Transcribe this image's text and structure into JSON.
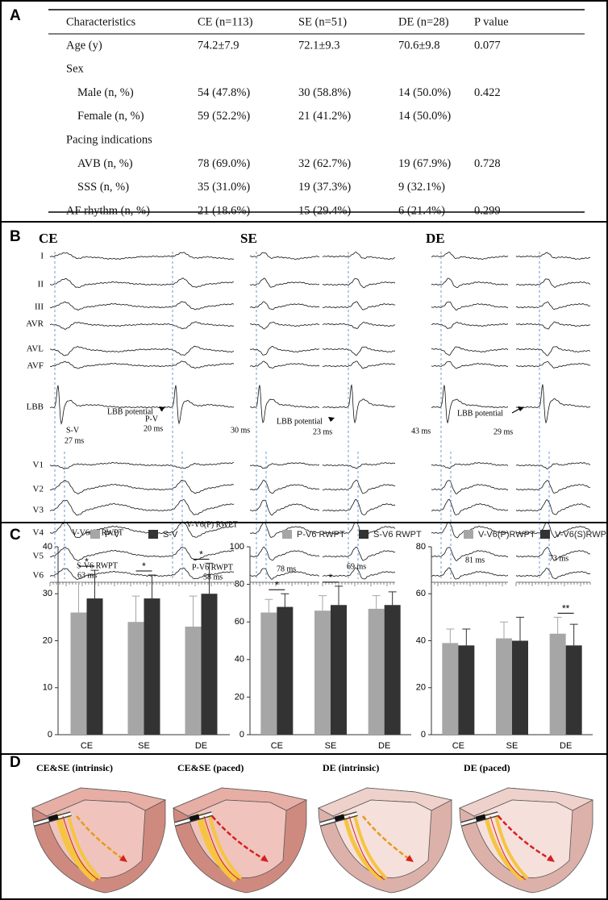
{
  "panels": [
    "A",
    "B",
    "C",
    "D"
  ],
  "table": {
    "header": [
      "Characteristics",
      "CE (n=113)",
      "SE (n=51)",
      "DE (n=28)",
      "P value"
    ],
    "rows": [
      {
        "cells": [
          "Age (y)",
          "74.2±7.9",
          "72.1±9.3",
          "70.6±9.8",
          "0.077"
        ]
      },
      {
        "cells": [
          "Sex"
        ],
        "sub": [
          [
            "Male (n, %)",
            "54 (47.8%)",
            "30 (58.8%)",
            "14 (50.0%)",
            "0.422"
          ],
          [
            "Female (n, %)",
            "59 (52.2%)",
            "21 (41.2%)",
            "14 (50.0%)"
          ]
        ]
      },
      {
        "cells": [
          "Pacing indications"
        ],
        "sub": [
          [
            "AVB (n, %)",
            "78 (69.0%)",
            "32 (62.7%)",
            "19 (67.9%)",
            "0.728"
          ],
          [
            "SSS (n, %)",
            "35 (31.0%)",
            "19 (37.3%)",
            "9 (32.1%)"
          ]
        ]
      },
      {
        "cells": [
          "AF rhythm (n, %)",
          "21 (18.6%)",
          "15 (29.4%)",
          "6 (21.4%)",
          "0.299"
        ]
      }
    ]
  },
  "ecg": {
    "groups": [
      "CE",
      "SE",
      "DE"
    ],
    "leads": [
      "I",
      "II",
      "III",
      "AVR",
      "AVL",
      "AVF",
      "LBB",
      "V1",
      "V2",
      "V3",
      "V4",
      "V5",
      "V6"
    ],
    "annotations": [
      "LBB potential",
      "LBB potential",
      "LBB potential",
      "S-V",
      "27 ms",
      "P-V",
      "20 ms",
      "V-V6(S) RWPT",
      "V-V6(P) RWPT",
      "S-V6 RWPT",
      "63 ms",
      "P-V6 RWPT",
      "58 ms",
      "30 ms",
      "23 ms",
      "78 ms",
      "69 ms",
      "43 ms",
      "29 ms",
      "81 ms",
      "73 ms"
    ]
  },
  "chart_data": [
    {
      "type": "bar",
      "categories": [
        "CE",
        "SE",
        "DE"
      ],
      "ylim": [
        0,
        40
      ],
      "yticks": [
        0,
        10,
        20,
        30,
        40
      ],
      "series": [
        {
          "name": "P-V",
          "color": "#a6a6a6",
          "values": [
            26,
            24,
            23
          ],
          "errors": [
            6.5,
            5.5,
            6.5
          ]
        },
        {
          "name": "S-V",
          "color": "#333333",
          "values": [
            29,
            29,
            30
          ],
          "errors": [
            6,
            5,
            6.5
          ]
        }
      ],
      "significance": [
        "*",
        "*",
        "*"
      ]
    },
    {
      "type": "bar",
      "categories": [
        "CE",
        "SE",
        "DE"
      ],
      "ylim": [
        0,
        100
      ],
      "yticks": [
        0,
        20,
        40,
        60,
        80,
        100
      ],
      "series": [
        {
          "name": "P-V6 RWPT",
          "color": "#a6a6a6",
          "values": [
            65,
            66,
            67
          ],
          "errors": [
            7,
            8,
            7
          ]
        },
        {
          "name": "S-V6 RWPT",
          "color": "#333333",
          "values": [
            68,
            69,
            69
          ],
          "errors": [
            7,
            10,
            7
          ]
        }
      ],
      "significance": [
        "*",
        "*",
        null
      ]
    },
    {
      "type": "bar",
      "categories": [
        "CE",
        "SE",
        "DE"
      ],
      "ylim": [
        0,
        80
      ],
      "yticks": [
        0,
        20,
        40,
        60,
        80
      ],
      "series": [
        {
          "name": "V-V6(P)RWPT",
          "color": "#a6a6a6",
          "values": [
            39,
            41,
            43
          ],
          "errors": [
            6,
            7,
            7
          ]
        },
        {
          "name": "V-V6(S)RWPT",
          "color": "#333333",
          "values": [
            38,
            40,
            38
          ],
          "errors": [
            7,
            10,
            9
          ]
        }
      ],
      "significance": [
        null,
        null,
        "**"
      ]
    }
  ],
  "diagrams": [
    "CE&SE (intrinsic)",
    "CE&SE (paced)",
    "DE (intrinsic)",
    "DE (paced)"
  ]
}
